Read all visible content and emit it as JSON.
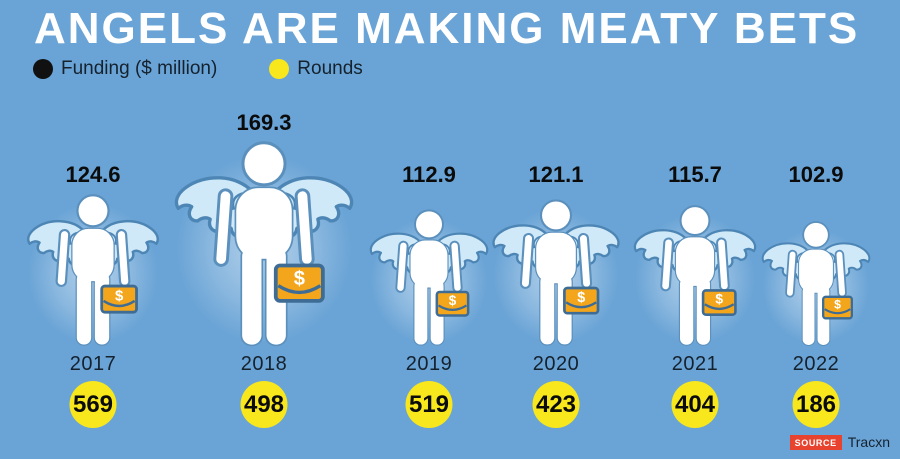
{
  "title": "ANGELS ARE MAKING MEATY BETS",
  "legend": {
    "funding": {
      "label": "Funding ($ million)",
      "dot_color": "#111111"
    },
    "rounds": {
      "label": "Rounds",
      "dot_color": "#f8e71c"
    }
  },
  "source": {
    "badge": "SOURCE",
    "text": "Tracxn"
  },
  "colors": {
    "background": "#6aa4d6",
    "title-text": "#ffffff",
    "dark-text": "#15222e",
    "value-text": "#0b0b0b",
    "accent-yellow": "#f8e71c",
    "badge-red": "#e8432e",
    "funding-dot": "#111111",
    "rounds-dot": "#f8e71c",
    "wing-fill": "#cfe9f8",
    "outline-blue": "#4d86b5",
    "body-fill": "#ffffff",
    "briefcase-orange": "#f3a61c",
    "briefcase-outline": "#3e6c94"
  },
  "chart_data": {
    "type": "bar",
    "variant": "pictogram - angel figure height proportional to funding value",
    "title": "ANGELS ARE MAKING MEATY BETS",
    "categories": [
      "2017",
      "2018",
      "2019",
      "2020",
      "2021",
      "2022"
    ],
    "series": [
      {
        "name": "Funding ($ million)",
        "values": [
          124.6,
          169.3,
          112.9,
          121.1,
          115.7,
          102.9
        ]
      },
      {
        "name": "Rounds",
        "values": [
          569,
          498,
          519,
          423,
          404,
          186
        ]
      }
    ],
    "xlabel": "",
    "ylabel": "",
    "grid": false,
    "legend_position": "top-left",
    "source": "Tracxn",
    "icons": {
      "angel-figure": "white person silhouette with pale blue feathered wings",
      "briefcase-dollar-icon": "orange briefcase with white $ sign"
    }
  }
}
